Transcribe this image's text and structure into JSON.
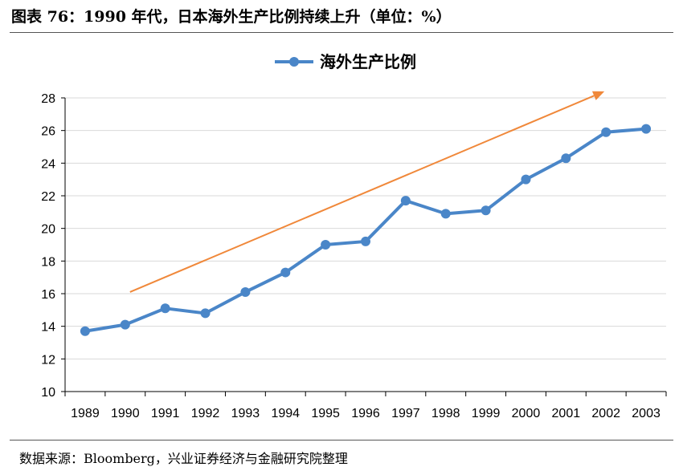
{
  "figure_title": "图表 76：1990 年代，日本海外生产比例持续上升（单位：%）",
  "source_note": "数据来源：Bloomberg，兴业证券经济与金融研究院整理",
  "colors": {
    "series": "#4a86c8",
    "trend_arrow": "#f0883a",
    "grid": "#d9d9d9",
    "axis": "#000000"
  },
  "chart_data": {
    "type": "line",
    "title": "",
    "xlabel": "",
    "ylabel": "",
    "x": [
      "1989",
      "1990",
      "1991",
      "1992",
      "1993",
      "1994",
      "1995",
      "1996",
      "1997",
      "1998",
      "1999",
      "2000",
      "2001",
      "2002",
      "2003"
    ],
    "series": [
      {
        "name": "海外生产比例",
        "values": [
          13.7,
          14.1,
          15.1,
          14.8,
          16.1,
          17.3,
          19.0,
          19.2,
          21.7,
          20.9,
          21.1,
          23.0,
          24.3,
          25.9,
          26.1
        ]
      }
    ],
    "ylim": [
      10,
      28
    ],
    "yticks": [
      "10",
      "12",
      "14",
      "16",
      "18",
      "20",
      "22",
      "24",
      "26",
      "28"
    ],
    "grid": true,
    "legend": "top-center",
    "annotations": [
      {
        "type": "trend-arrow",
        "from": {
          "x": "1990",
          "y": 16.1
        },
        "to": {
          "x": "2002",
          "y": 28.4
        }
      }
    ]
  }
}
